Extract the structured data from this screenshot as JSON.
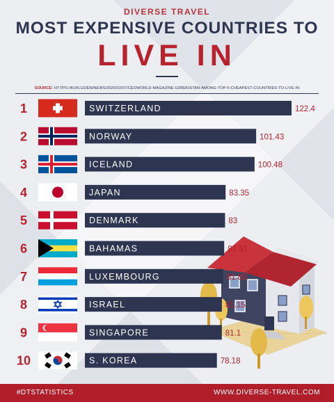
{
  "header": {
    "brand": "DIVERSE TRAVEL",
    "title_line1": "MOST EXPENSIVE COUNTRIES TO",
    "title_line2": "LIVE IN",
    "source_label": "SOURCE:",
    "source_url": "HTTPS://KUN.UZ/EN/NEWS/2020/02/07/CEOWORLD-MAGAZINE-UZBEKISTAN-AMONG-TOP-5-CHEAPEST-COUNTRIES-TO-LIVE-IN"
  },
  "footer": {
    "hashtag": "#DTSTATISTICS",
    "website": "WWW.DIVERSE-TRAVEL.COM"
  },
  "colors": {
    "bar": "#2e3550",
    "accent": "#b8222d",
    "rank": "#b8222d",
    "value": "#b8222d"
  },
  "chart_data": {
    "type": "bar",
    "orientation": "horizontal",
    "categories": [
      "SWITZERLAND",
      "NORWAY",
      "ICELAND",
      "JAPAN",
      "DENMARK",
      "BAHAMAS",
      "LUXEMBOURG",
      "ISRAEL",
      "SINGAPORE",
      "S. KOREA"
    ],
    "ranks": [
      "1",
      "2",
      "3",
      "4",
      "5",
      "6",
      "7",
      "8",
      "9",
      "10"
    ],
    "values": [
      122.4,
      101.43,
      100.48,
      83.35,
      83,
      82.51,
      81.89,
      81.15,
      81.1,
      78.18
    ],
    "value_labels": [
      "122.4",
      "101.43",
      "100.48",
      "83.35",
      "83",
      "82.51",
      "81.89",
      "81.15",
      "81.1",
      "78.18"
    ],
    "flags": [
      "switzerland-flag",
      "norway-flag",
      "iceland-flag",
      "japan-flag",
      "denmark-flag",
      "bahamas-flag",
      "luxembourg-flag",
      "israel-flag",
      "singapore-flag",
      "south-korea-flag"
    ],
    "xlim": [
      0,
      125
    ],
    "grid": false,
    "legend": "none"
  }
}
